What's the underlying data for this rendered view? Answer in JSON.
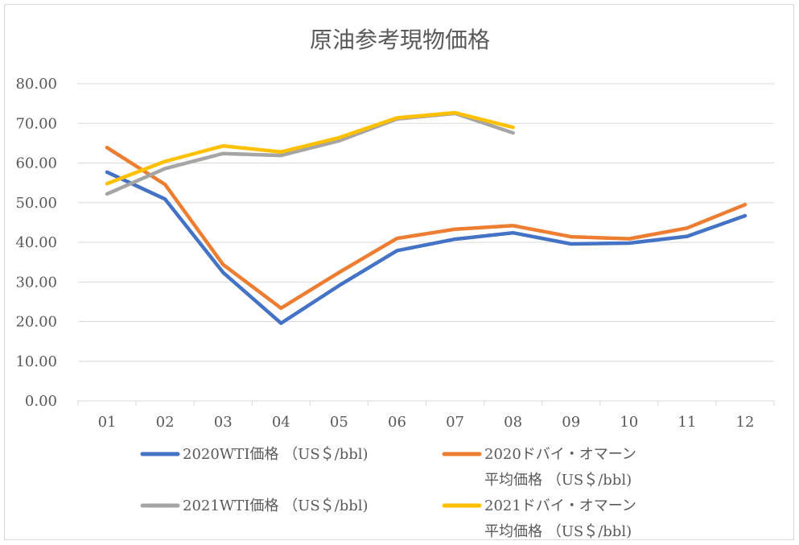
{
  "chart_data": {
    "type": "line",
    "title": "原油参考現物価格",
    "xlabel": "",
    "ylabel": "",
    "categories": [
      "01",
      "02",
      "03",
      "04",
      "05",
      "06",
      "07",
      "08",
      "09",
      "10",
      "11",
      "12"
    ],
    "ylim": [
      0,
      80
    ],
    "y_ticks": [
      "0.00",
      "10.00",
      "20.00",
      "30.00",
      "40.00",
      "50.00",
      "60.00",
      "70.00",
      "80.00"
    ],
    "grid": true,
    "legend_position": "bottom",
    "series": [
      {
        "name": "2020WTI価格 （US＄/bbl)",
        "color": "#4472C4",
        "values": [
          57.7,
          50.9,
          32.4,
          19.6,
          29.1,
          37.9,
          40.8,
          42.4,
          39.6,
          39.8,
          41.5,
          46.7
        ]
      },
      {
        "name_line1": "2020ドバイ・オマーン",
        "name_line2": "平均価格 （US＄/bbl)",
        "color": "#ED7D31",
        "values": [
          63.9,
          54.6,
          34.4,
          23.4,
          32.4,
          41.0,
          43.3,
          44.2,
          41.4,
          40.9,
          43.6,
          49.5
        ]
      },
      {
        "name": "2021WTI価格 （US＄/bbl)",
        "color": "#A5A5A5",
        "values": [
          52.2,
          58.6,
          62.4,
          61.9,
          65.6,
          71.1,
          72.5,
          67.6,
          null,
          null,
          null,
          null
        ]
      },
      {
        "name_line1": "2021ドバイ・オマーン",
        "name_line2": "平均価格 （US＄/bbl)",
        "color": "#FFC000",
        "values": [
          54.8,
          60.4,
          64.3,
          62.8,
          66.4,
          71.4,
          72.7,
          69.0,
          null,
          null,
          null,
          null
        ]
      }
    ]
  }
}
